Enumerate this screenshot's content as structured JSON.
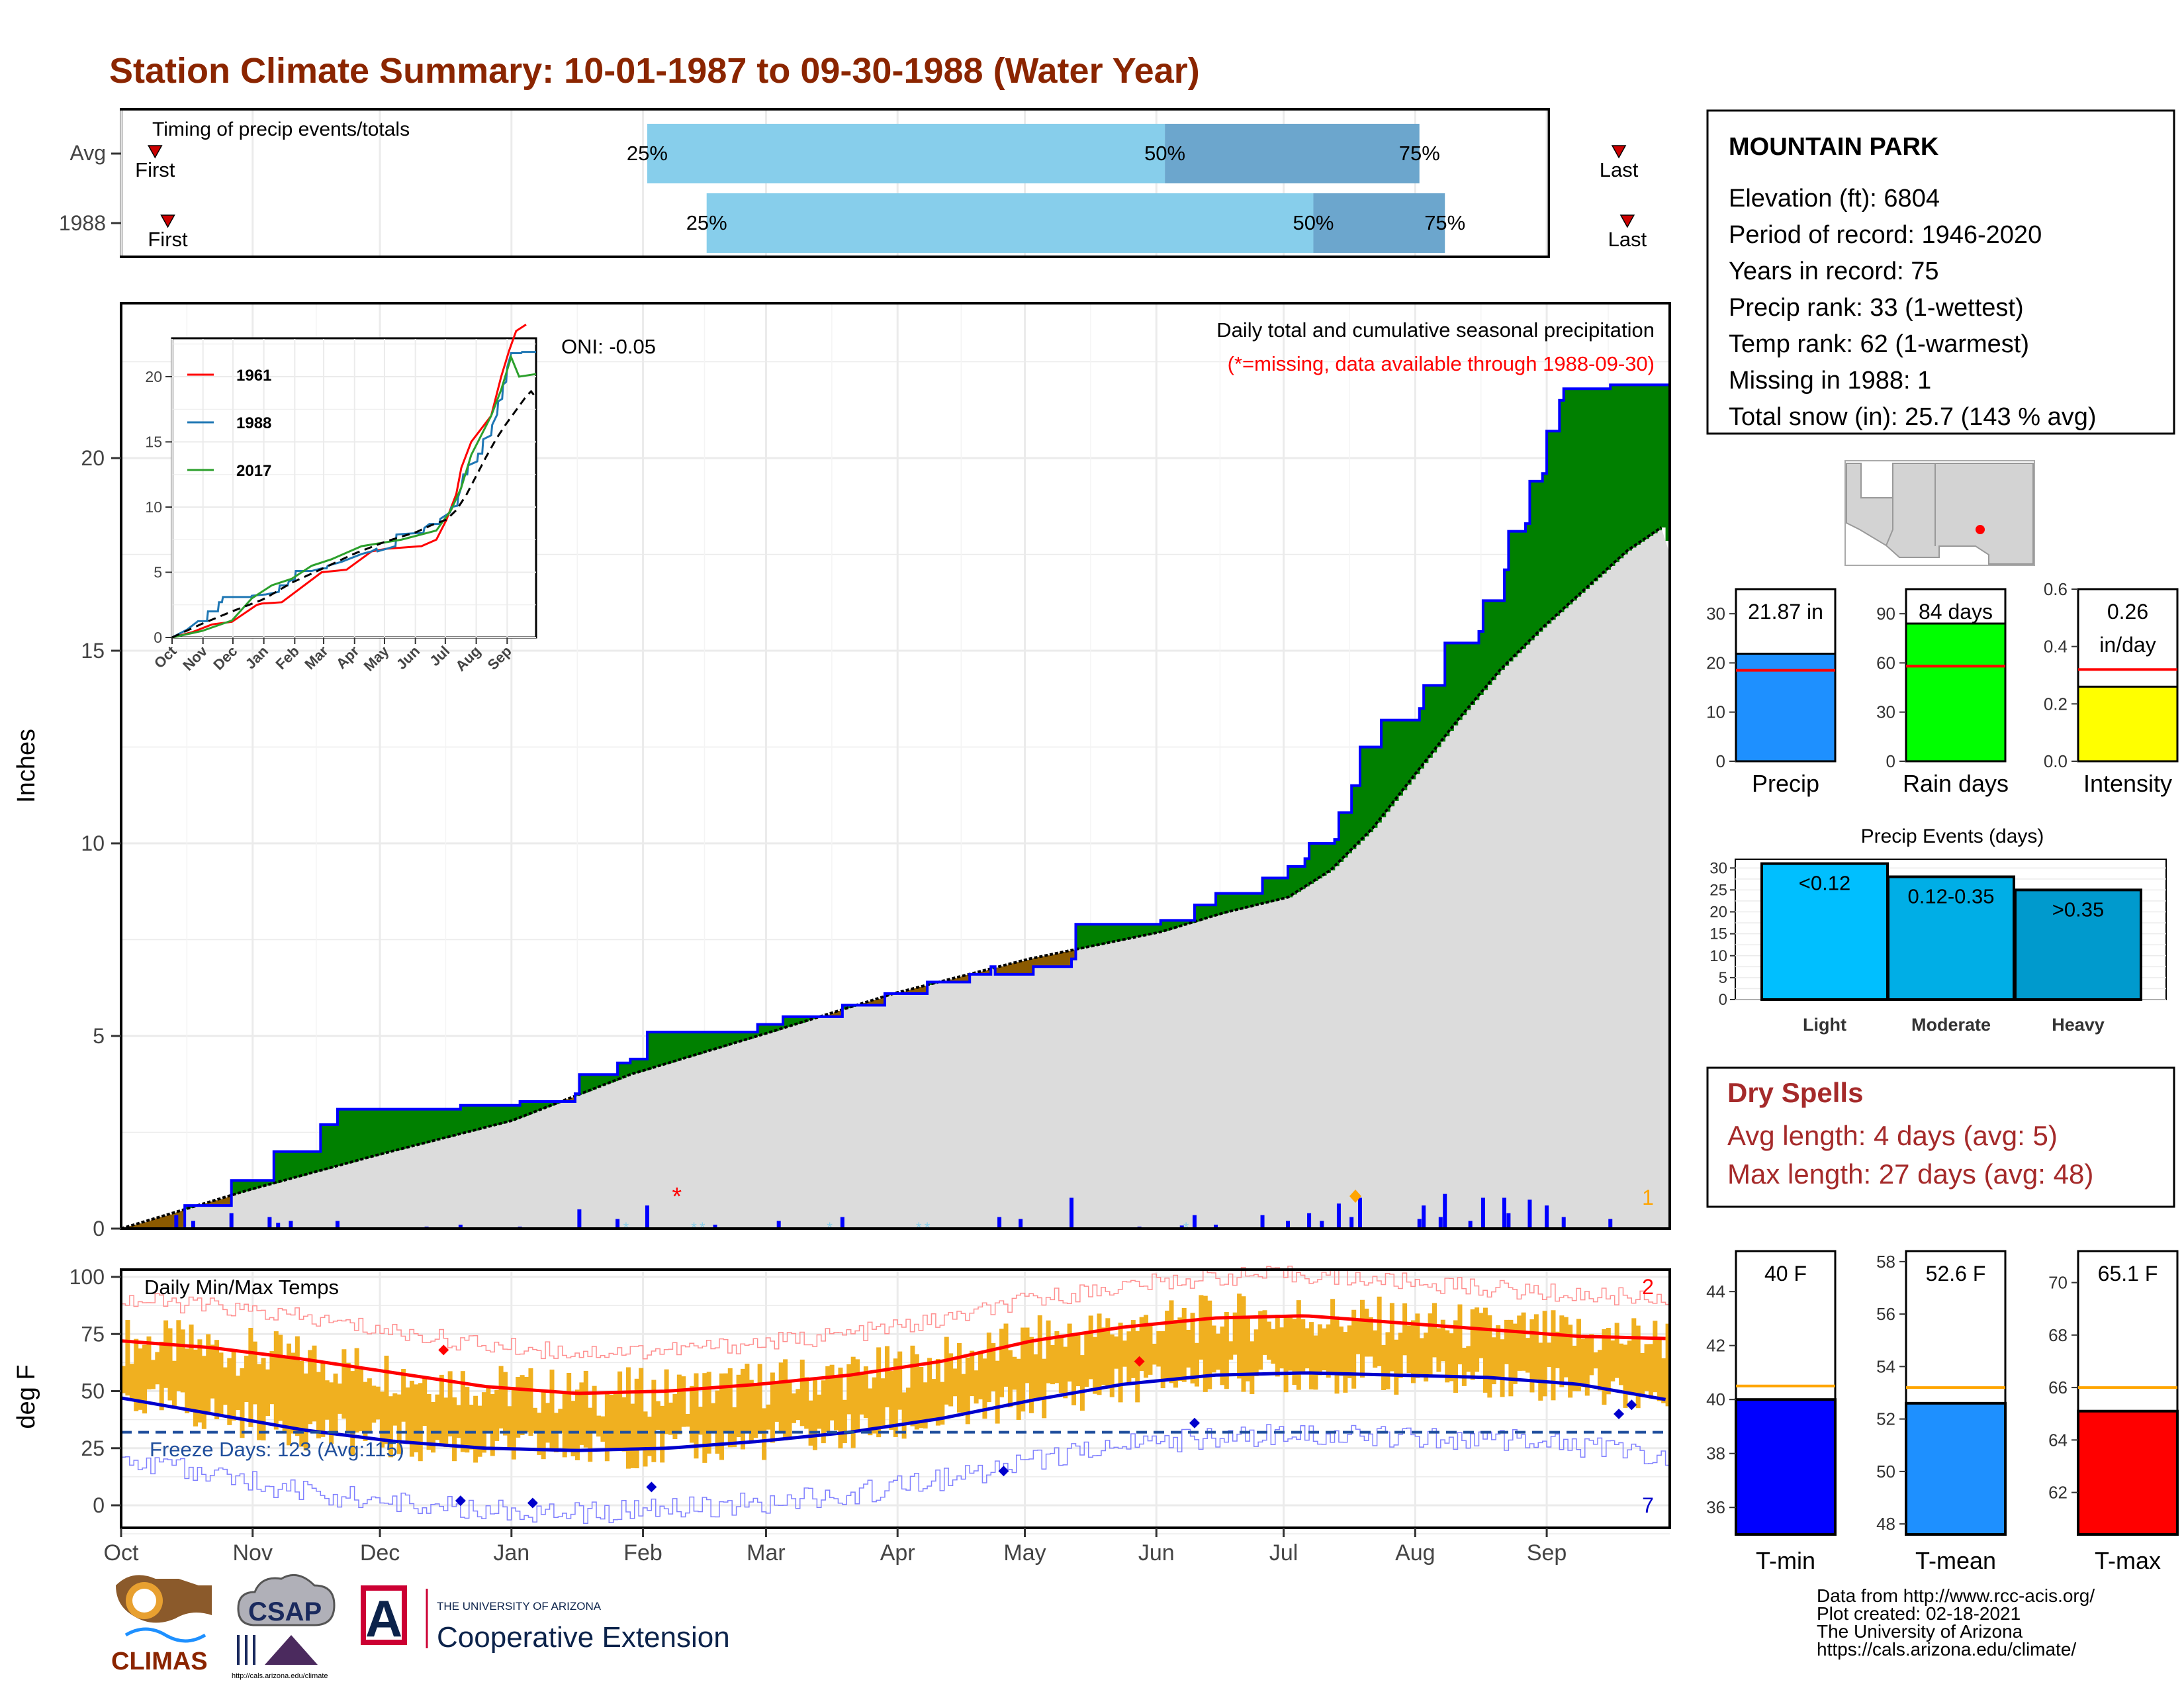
{
  "title": "Station Climate Summary: 10-01-1987 to 09-30-1988 (Water Year)",
  "colors": {
    "title": "#8b2500",
    "precip_above": "#008000",
    "precip_below": "#8b5a00",
    "normal_fill": "#dcdcdc",
    "timing_light": "#87ceeb",
    "timing_dark": "#6ca6cd",
    "temp_band": "#f0b020",
    "avg_max": "#ff0000",
    "avg_min": "#0000cc",
    "precip_bar": "#1e90ff",
    "rain_bar": "#00ff00",
    "intensity_bar": "#ffff00",
    "tmin_bar": "#0000ff",
    "tmean_bar": "#1e90ff",
    "tmax_bar": "#ff0000",
    "dry_spells": "#a52a2a"
  },
  "months": [
    "Oct",
    "Nov",
    "Dec",
    "Jan",
    "Feb",
    "Mar",
    "Apr",
    "May",
    "Jun",
    "Jul",
    "Aug",
    "Sep"
  ],
  "timing": {
    "label": "Timing of precip events/totals",
    "rows": [
      {
        "name": "Avg",
        "first_label": "First",
        "last_label": "Last",
        "first_day": 8,
        "last_day": 353,
        "p25": 124,
        "p50": 246,
        "p75": 306,
        "l25": "25%",
        "l50": "50%",
        "l75": "75%"
      },
      {
        "name": "1988",
        "first_label": "First",
        "last_label": "Last",
        "first_day": 11,
        "last_day": 355,
        "p25": 138,
        "p50": 281,
        "p75": 312,
        "l25": "25%",
        "l50": "50%",
        "l75": "75%"
      }
    ]
  },
  "precip": {
    "ylabel": "Inches",
    "yticks": [
      "0",
      "5",
      "10",
      "15",
      "20"
    ],
    "note1": "Daily total and cumulative seasonal precipitation",
    "note2": "(*=missing, data available through 1988-09-30)",
    "oni": "ONI: -0.05",
    "count_right": "1",
    "missing_marker": "*"
  },
  "inset": {
    "yticks": [
      "0",
      "5",
      "10",
      "15",
      "20"
    ],
    "months": [
      "Oct",
      "Nov",
      "Dec",
      "Jan",
      "Feb",
      "Mar",
      "Apr",
      "May",
      "Jun",
      "Jul",
      "Aug",
      "Sep"
    ],
    "legend": [
      {
        "name": "1961",
        "color": "#ff0000"
      },
      {
        "name": "1988",
        "color": "#1f77b4"
      },
      {
        "name": "2017",
        "color": "#2ca02c"
      }
    ]
  },
  "temps": {
    "ylabel": "deg F",
    "label": "Daily Min/Max Temps",
    "yticks": [
      "0",
      "25",
      "50",
      "75",
      "100"
    ],
    "freeze": "Freeze Days: 123 (Avg:115)",
    "count_top": "2",
    "count_bottom": "7"
  },
  "station": {
    "name": "MOUNTAIN PARK",
    "lines": [
      "Elevation (ft): 6804",
      "Period of record: 1946-2020",
      "Years in record: 75",
      "Precip rank: 33 (1-wettest)",
      "Temp rank: 62 (1-warmest)",
      "Missing in 1988: 1",
      "Total snow (in): 25.7 (143 % avg)"
    ]
  },
  "summary_bars": [
    {
      "label": "Precip",
      "value_text": "21.87 in",
      "value": 21.87,
      "avg": 18.5,
      "ymax": 35,
      "ticks": [
        "0",
        "10",
        "20",
        "30"
      ],
      "tickvals": [
        0,
        10,
        20,
        30
      ],
      "color": "#1e90ff"
    },
    {
      "label": "Rain days",
      "value_text": "84 days",
      "value": 84,
      "avg": 58,
      "ymax": 105,
      "ticks": [
        "0",
        "30",
        "60",
        "90"
      ],
      "tickvals": [
        0,
        30,
        60,
        90
      ],
      "color": "#00ff00"
    },
    {
      "label": "Intensity",
      "value_text": "0.26 in/day",
      "value_line1": "0.26",
      "value_line2": "in/day",
      "value": 0.26,
      "avg": 0.32,
      "ymax": 0.6,
      "ticks": [
        "0.0",
        "0.2",
        "0.4",
        "0.6"
      ],
      "tickvals": [
        0,
        0.2,
        0.4,
        0.6
      ],
      "color": "#ffff00"
    }
  ],
  "events": {
    "title": "Precip Events (days)",
    "yticks": [
      "0",
      "5",
      "10",
      "15",
      "20",
      "25",
      "30"
    ],
    "bars": [
      {
        "label": "Light",
        "cat": "<0.12",
        "value": 31,
        "color": "#00bfff"
      },
      {
        "label": "Moderate",
        "cat": "0.12-0.35",
        "value": 28,
        "color": "#00aee6"
      },
      {
        "label": "Heavy",
        "cat": ">0.35",
        "value": 25,
        "color": "#009acd"
      }
    ]
  },
  "dry_spells": {
    "title": "Dry Spells",
    "avg": "Avg length: 4 days (avg: 5)",
    "max": "Max length: 27 days (avg: 48)"
  },
  "temp_bars": [
    {
      "label": "T-min",
      "value_text": "40 F",
      "value": 40,
      "avg": 40.5,
      "ymin": 35,
      "ymax": 45.5,
      "ticks": [
        "36",
        "38",
        "40",
        "42",
        "44"
      ],
      "tickvals": [
        36,
        38,
        40,
        42,
        44
      ],
      "color": "#0000ff"
    },
    {
      "label": "T-mean",
      "value_text": "52.6 F",
      "value": 52.6,
      "avg": 53.2,
      "ymin": 47.6,
      "ymax": 58.4,
      "ticks": [
        "48",
        "50",
        "52",
        "54",
        "56",
        "58"
      ],
      "tickvals": [
        48,
        50,
        52,
        54,
        56,
        58
      ],
      "color": "#1e90ff"
    },
    {
      "label": "T-max",
      "value_text": "65.1 F",
      "value": 65.1,
      "avg": 66,
      "ymin": 60.4,
      "ymax": 71.2,
      "ticks": [
        "62",
        "64",
        "66",
        "68",
        "70"
      ],
      "tickvals": [
        62,
        64,
        66,
        68,
        70
      ],
      "color": "#ff0000"
    }
  ],
  "footer": [
    "Data from http://www.rcc-acis.org/",
    "Plot created: 02-18-2021",
    "The University of Arizona",
    "https://cals.arizona.edu/climate/"
  ],
  "logos": {
    "climas": "CLIMAS",
    "csap": "CSAP",
    "csap_url": "http://cals.arizona.edu/climate",
    "ua_small": "THE UNIVERSITY OF ARIZONA",
    "ua_big": "Cooperative Extension",
    "ua_letter": "A"
  },
  "chart_data": {
    "type": "area",
    "title": "Station Climate Summary: 10-01-1987 to 09-30-1988 (Water Year)",
    "xlabel": "",
    "ylabel": "Inches",
    "ylim": [
      0,
      23.5
    ],
    "x": [
      "Oct",
      "Nov",
      "Dec",
      "Jan",
      "Feb",
      "Mar",
      "Apr",
      "May",
      "Jun",
      "Jul",
      "Aug",
      "Sep"
    ],
    "series": [
      {
        "name": "cumulative_1988",
        "points": [
          [
            0,
            0
          ],
          [
            15,
            0.6
          ],
          [
            26,
            1.25
          ],
          [
            35,
            1.25
          ],
          [
            36,
            2.0
          ],
          [
            46,
            2.0
          ],
          [
            47,
            2.7
          ],
          [
            50,
            2.7
          ],
          [
            51,
            3.1
          ],
          [
            79,
            3.1
          ],
          [
            80,
            3.2
          ],
          [
            94,
            3.3
          ],
          [
            107,
            3.5
          ],
          [
            108,
            4.0
          ],
          [
            116,
            4.0
          ],
          [
            117,
            4.3
          ],
          [
            120,
            4.4
          ],
          [
            123,
            4.4
          ],
          [
            124,
            5.1
          ],
          [
            140,
            5.1
          ],
          [
            150,
            5.3
          ],
          [
            155,
            5.3
          ],
          [
            156,
            5.5
          ],
          [
            170,
            5.8
          ],
          [
            180,
            6.1
          ],
          [
            190,
            6.4
          ],
          [
            200,
            6.6
          ],
          [
            205,
            6.8
          ],
          [
            206,
            6.6
          ],
          [
            215,
            6.8
          ],
          [
            224,
            7.0
          ],
          [
            225,
            7.9
          ],
          [
            245,
            8.0
          ],
          [
            252,
            8.0
          ],
          [
            253,
            8.4
          ],
          [
            258,
            8.7
          ],
          [
            268,
            8.7
          ],
          [
            269,
            9.1
          ],
          [
            275,
            9.4
          ],
          [
            279,
            9.6
          ],
          [
            280,
            10.0
          ],
          [
            286,
            10.1
          ],
          [
            287,
            10.8
          ],
          [
            290,
            11.5
          ],
          [
            292,
            12.5
          ],
          [
            296,
            12.5
          ],
          [
            297,
            13.2
          ],
          [
            306,
            13.5
          ],
          [
            307,
            14.1
          ],
          [
            311,
            14.1
          ],
          [
            312,
            15.2
          ],
          [
            320,
            15.5
          ],
          [
            321,
            16.3
          ],
          [
            326,
            17.1
          ],
          [
            327,
            18.1
          ],
          [
            331,
            18.3
          ],
          [
            332,
            19.4
          ],
          [
            335,
            19.6
          ],
          [
            336,
            20.7
          ],
          [
            339,
            21.5
          ],
          [
            340,
            21.8
          ],
          [
            350,
            21.8
          ],
          [
            351,
            21.9
          ],
          [
            365,
            21.9
          ]
        ]
      },
      {
        "name": "normal",
        "points": [
          [
            0,
            0
          ],
          [
            30,
            1.0
          ],
          [
            60,
            1.9
          ],
          [
            92,
            2.8
          ],
          [
            120,
            4.0
          ],
          [
            153,
            5.1
          ],
          [
            182,
            6.1
          ],
          [
            214,
            7.0
          ],
          [
            245,
            7.7
          ],
          [
            260,
            8.2
          ],
          [
            275,
            8.6
          ],
          [
            285,
            9.3
          ],
          [
            295,
            10.4
          ],
          [
            305,
            11.8
          ],
          [
            315,
            13.2
          ],
          [
            325,
            14.5
          ],
          [
            335,
            15.6
          ],
          [
            345,
            16.6
          ],
          [
            355,
            17.6
          ],
          [
            363,
            18.2
          ],
          [
            365,
            17.5
          ]
        ]
      }
    ],
    "daily_bars": [
      [
        13,
        0.35
      ],
      [
        17,
        0.2
      ],
      [
        26,
        0.4
      ],
      [
        35,
        0.3
      ],
      [
        37,
        0.15
      ],
      [
        40,
        0.2
      ],
      [
        51,
        0.2
      ],
      [
        72,
        0.05
      ],
      [
        80,
        0.1
      ],
      [
        94,
        0.05
      ],
      [
        108,
        0.5
      ],
      [
        117,
        0.25
      ],
      [
        124,
        0.6
      ],
      [
        140,
        0.1
      ],
      [
        155,
        0.2
      ],
      [
        170,
        0.3
      ],
      [
        207,
        0.3
      ],
      [
        212,
        0.25
      ],
      [
        224,
        0.8
      ],
      [
        240,
        0.05
      ],
      [
        250,
        0.08
      ],
      [
        253,
        0.35
      ],
      [
        258,
        0.1
      ],
      [
        269,
        0.35
      ],
      [
        275,
        0.2
      ],
      [
        280,
        0.4
      ],
      [
        283,
        0.2
      ],
      [
        287,
        0.65
      ],
      [
        290,
        0.3
      ],
      [
        292,
        0.8
      ],
      [
        306,
        0.25
      ],
      [
        307,
        0.6
      ],
      [
        311,
        0.3
      ],
      [
        312,
        0.9
      ],
      [
        318,
        0.2
      ],
      [
        321,
        0.8
      ],
      [
        326,
        0.8
      ],
      [
        327,
        0.4
      ],
      [
        332,
        0.75
      ],
      [
        336,
        0.6
      ],
      [
        340,
        0.3
      ],
      [
        351,
        0.25
      ]
    ],
    "missing_day": 131,
    "temps": {
      "avg_max_f": [
        72,
        69,
        64,
        58,
        52,
        49,
        50,
        53,
        57,
        63,
        72,
        78,
        82,
        83,
        80,
        77,
        74,
        73
      ],
      "avg_min_f": [
        47,
        40,
        33,
        28,
        25,
        24,
        25,
        28,
        32,
        38,
        46,
        53,
        57,
        58,
        57,
        56,
        53,
        46
      ],
      "freeze_line_f": 32
    }
  }
}
